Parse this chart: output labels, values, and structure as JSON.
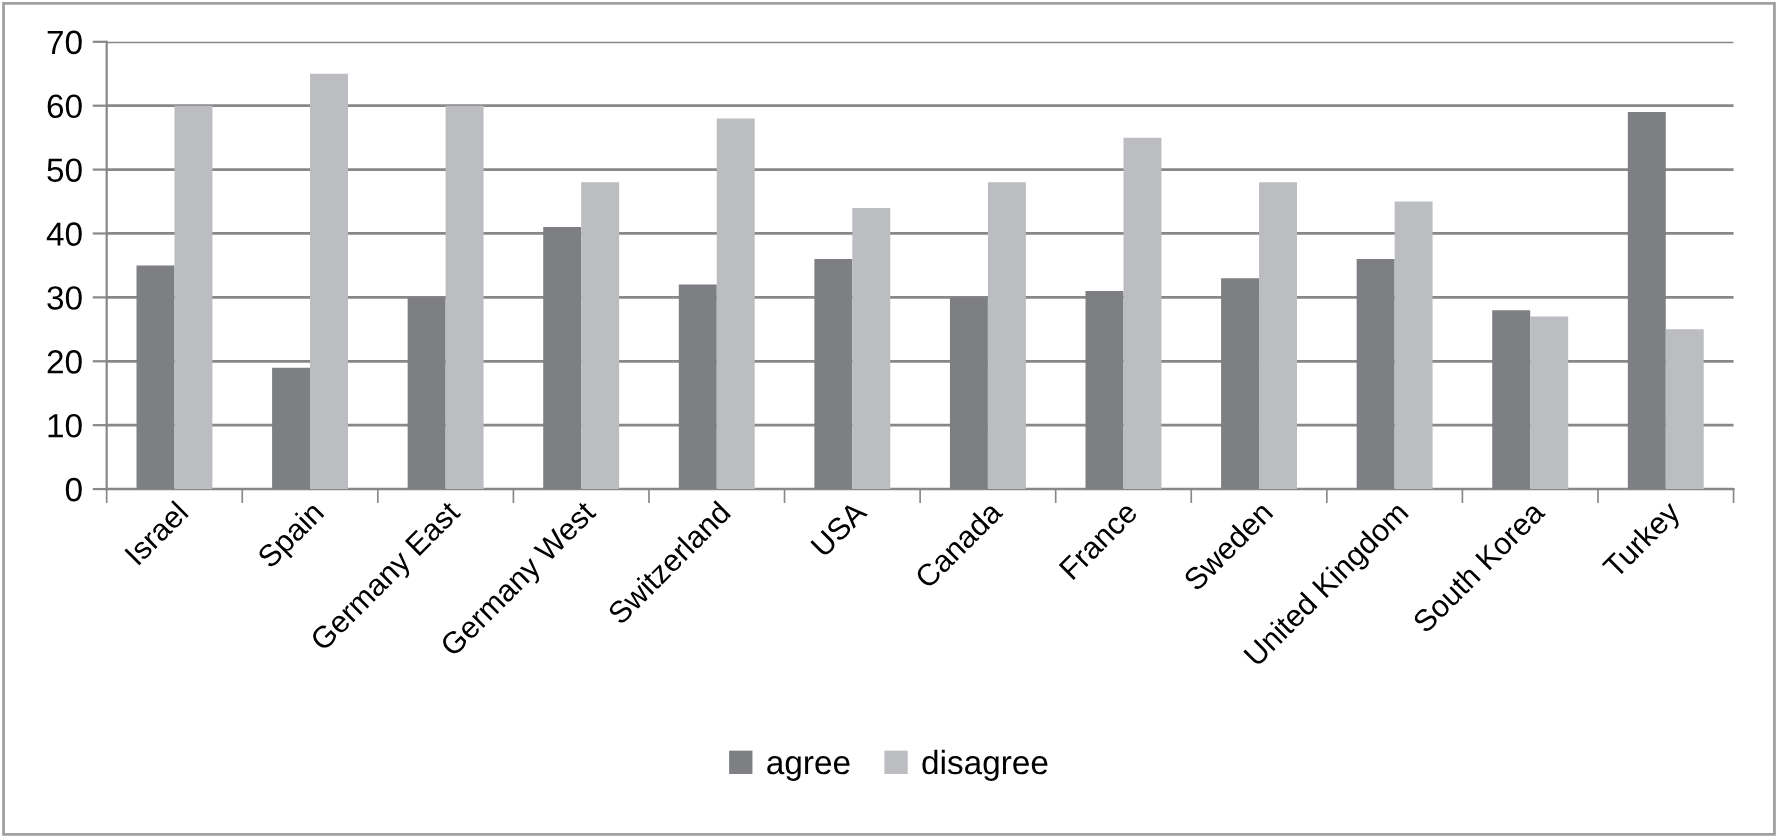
{
  "chart_data": {
    "type": "bar",
    "categories": [
      "Israel",
      "Spain",
      "Germany East",
      "Germany West",
      "Switzerland",
      "USA",
      "Canada",
      "France",
      "Sweden",
      "United Kingdom",
      "South Korea",
      "Turkey"
    ],
    "series": [
      {
        "name": "agree",
        "color": "#7e7f83",
        "values": [
          35,
          19,
          30,
          41,
          32,
          36,
          30,
          31,
          33,
          36,
          28,
          59
        ]
      },
      {
        "name": "disagree",
        "color": "#bcbdc1",
        "values": [
          60,
          65,
          60,
          48,
          58,
          44,
          48,
          55,
          48,
          45,
          27,
          25
        ]
      }
    ],
    "ylim": [
      0,
      70
    ],
    "yticks": [
      0,
      10,
      20,
      30,
      40,
      50,
      60,
      70
    ],
    "grid": "y",
    "legend": "bottom"
  }
}
